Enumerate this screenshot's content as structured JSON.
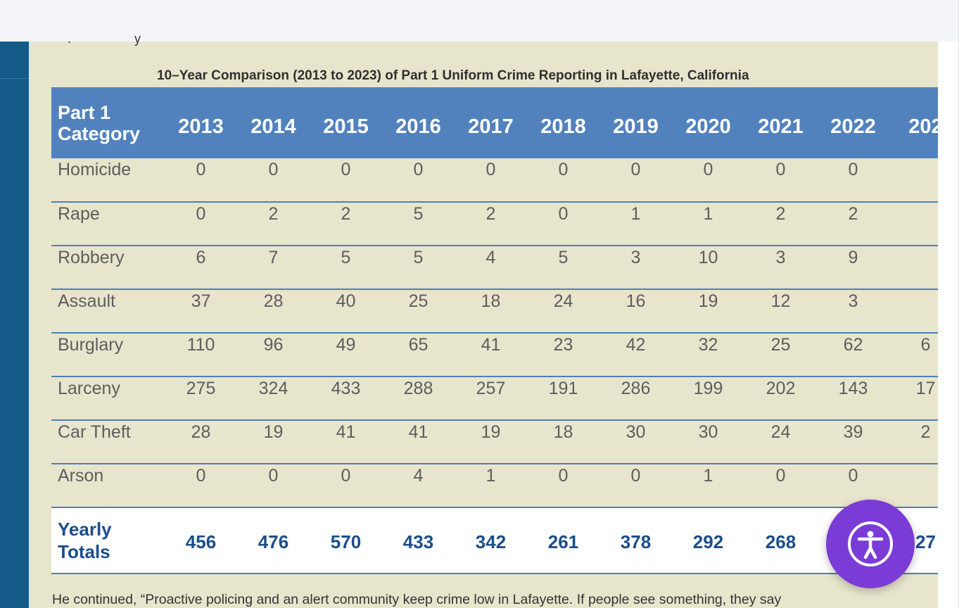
{
  "article": {
    "table_title": "10–Year Comparison (2013 to 2023) of Part 1 Uniform Crime Reporting in Lafayette, California",
    "category_header_line1": "Part 1",
    "category_header_line2": "Category",
    "years": [
      "2013",
      "2014",
      "2015",
      "2016",
      "2017",
      "2018",
      "2019",
      "2020",
      "2021",
      "2022",
      "202"
    ],
    "rows": [
      {
        "category": "Homicide",
        "values": [
          "0",
          "0",
          "0",
          "0",
          "0",
          "0",
          "0",
          "0",
          "0",
          "0",
          ""
        ]
      },
      {
        "category": "Rape",
        "values": [
          "0",
          "2",
          "2",
          "5",
          "2",
          "0",
          "1",
          "1",
          "2",
          "2",
          ""
        ]
      },
      {
        "category": "Robbery",
        "values": [
          "6",
          "7",
          "5",
          "5",
          "4",
          "5",
          "3",
          "10",
          "3",
          "9",
          ""
        ]
      },
      {
        "category": "Assault",
        "values": [
          "37",
          "28",
          "40",
          "25",
          "18",
          "24",
          "16",
          "19",
          "12",
          "3",
          ""
        ]
      },
      {
        "category": "Burglary",
        "values": [
          "110",
          "96",
          "49",
          "65",
          "41",
          "23",
          "42",
          "32",
          "25",
          "62",
          "6"
        ]
      },
      {
        "category": "Larceny",
        "values": [
          "275",
          "324",
          "433",
          "288",
          "257",
          "191",
          "286",
          "199",
          "202",
          "143",
          "17"
        ]
      },
      {
        "category": "Car Theft",
        "values": [
          "28",
          "19",
          "41",
          "41",
          "19",
          "18",
          "30",
          "30",
          "24",
          "39",
          "2"
        ]
      },
      {
        "category": "Arson",
        "values": [
          "0",
          "0",
          "0",
          "4",
          "1",
          "0",
          "0",
          "1",
          "0",
          "0",
          ""
        ]
      }
    ],
    "totals_label_line1": "Yearly",
    "totals_label_line2": "Totals",
    "totals": [
      "456",
      "476",
      "570",
      "433",
      "342",
      "261",
      "378",
      "292",
      "268",
      "",
      "27"
    ],
    "paragraph_text": "He continued, “Proactive policing and an alert community keep crime low in Lafayette. If people see something, they say"
  },
  "accessibility_button": {
    "icon": "accessibility-icon",
    "color": "#7b3bd6"
  },
  "colors": {
    "header_blue": "#5182be",
    "sidebar_blue": "#145b8a",
    "content_bg": "#e8e5cd",
    "totals_text": "#1b4d8c"
  }
}
